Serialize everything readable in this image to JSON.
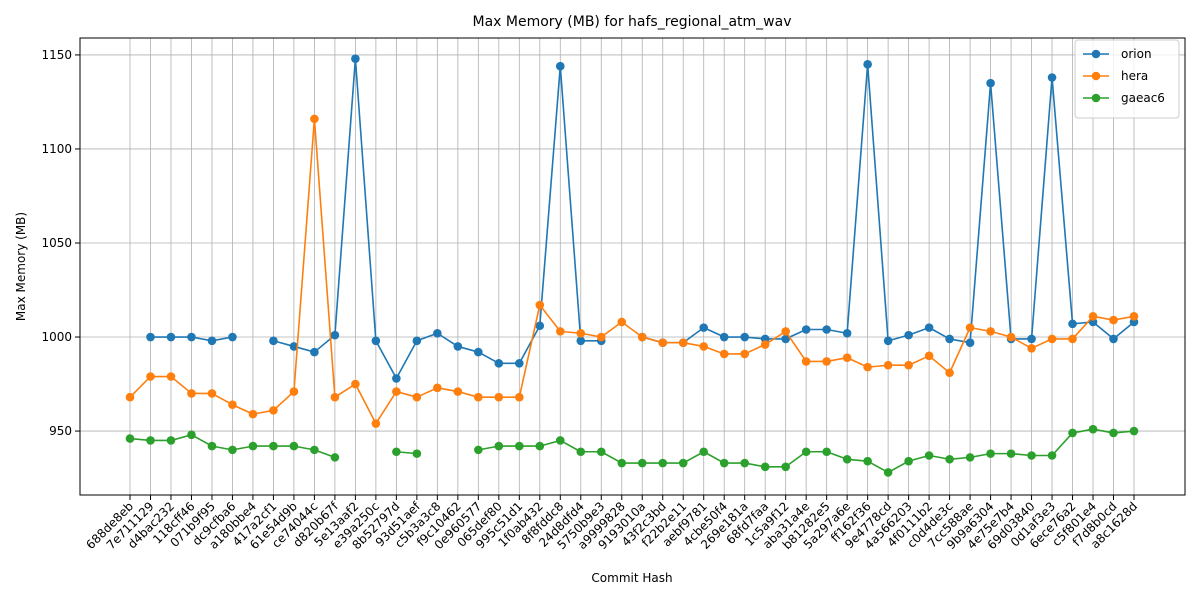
{
  "chart_data": {
    "type": "line",
    "title": "Max Memory (MB) for hafs_regional_atm_wav",
    "xlabel": "Commit Hash",
    "ylabel": "Max Memory (MB)",
    "ylim": [
      916,
      1159
    ],
    "yticks": [
      950,
      1000,
      1050,
      1100,
      1150
    ],
    "grid": true,
    "legend_position": "top-right",
    "categories": [
      "688de8eb",
      "7e711129",
      "d4bac232",
      "118cff46",
      "071b9f95",
      "dc9cfba6",
      "a180bbe4",
      "417a2cf1",
      "61e54d9b",
      "ce74044c",
      "d820b67f",
      "5e13aaf2",
      "e39a250c",
      "8b52797d",
      "93d51aef",
      "c5b3a3c8",
      "f9c10462",
      "0e960577",
      "065def80",
      "995c51d1",
      "1f0ab432",
      "8f8fddc8",
      "24d8dfd4",
      "5750b9e3",
      "a9999828",
      "9193010a",
      "43f2c3bd",
      "f22b2e11",
      "aebf9781",
      "4cbe50f4",
      "269e181a",
      "68fd7faa",
      "1c5a9f12",
      "aba31a4e",
      "b81282e5",
      "5a297a6e",
      "ff162f36",
      "9e4778cd",
      "4a566203",
      "4f0111b2",
      "c0d4de3c",
      "7cc588ae",
      "9b9a6304",
      "4e75e7b4",
      "69d03840",
      "0d1af3e3",
      "6ece76a2",
      "c5f801e4",
      "f7d8b0cd",
      "a8c1628d"
    ],
    "series": [
      {
        "name": "orion",
        "color": "#1f77b4",
        "values": [
          null,
          1000,
          1000,
          1000,
          998,
          1000,
          null,
          998,
          995,
          992,
          1001,
          1148,
          998,
          978,
          998,
          1002,
          995,
          992,
          986,
          986,
          1006,
          1144,
          998,
          998,
          null,
          1000,
          997,
          997,
          1005,
          1000,
          1000,
          999,
          999,
          1004,
          1004,
          1002,
          1145,
          998,
          1001,
          1005,
          999,
          997,
          1135,
          999,
          999,
          1138,
          1007,
          1008,
          999,
          1008
        ]
      },
      {
        "name": "hera",
        "color": "#ff7f0e",
        "values": [
          968,
          979,
          979,
          970,
          970,
          964,
          959,
          961,
          971,
          1116,
          968,
          975,
          954,
          971,
          968,
          973,
          971,
          968,
          968,
          968,
          1017,
          1003,
          1002,
          1000,
          1008,
          1000,
          997,
          997,
          995,
          991,
          991,
          996,
          1003,
          987,
          987,
          989,
          984,
          985,
          985,
          990,
          981,
          1005,
          1003,
          1000,
          994,
          999,
          999,
          1011,
          1009,
          1011
        ]
      },
      {
        "name": "gaeac6",
        "color": "#2ca02c",
        "values": [
          946,
          945,
          945,
          948,
          942,
          940,
          942,
          942,
          942,
          940,
          936,
          null,
          null,
          939,
          938,
          null,
          null,
          940,
          942,
          942,
          942,
          945,
          939,
          939,
          933,
          933,
          933,
          933,
          939,
          933,
          933,
          931,
          931,
          939,
          939,
          935,
          934,
          928,
          934,
          937,
          935,
          936,
          938,
          938,
          937,
          937,
          949,
          951,
          949,
          950
        ]
      }
    ]
  }
}
